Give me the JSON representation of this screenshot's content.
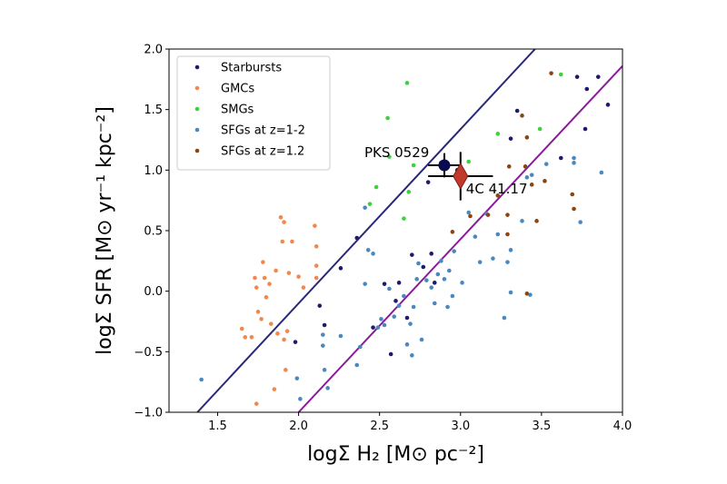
{
  "chart_data": {
    "type": "scatter",
    "xlabel": "logΣ H₂ [M⊙ pc⁻²]",
    "ylabel": "logΣ SFR [M⊙ yr⁻¹ kpc⁻²]",
    "xlim": [
      1.2,
      4.0
    ],
    "ylim": [
      -1.0,
      2.0
    ],
    "xticks": [
      1.5,
      2.0,
      2.5,
      3.0,
      3.5,
      4.0
    ],
    "xtick_labels": [
      "1.5",
      "2.0",
      "2.5",
      "3.0",
      "3.5",
      "4.0"
    ],
    "yticks": [
      -1.0,
      -0.5,
      0.0,
      0.5,
      1.0,
      1.5,
      2.0
    ],
    "ytick_labels": [
      "−1.0",
      "−0.5",
      "0.0",
      "0.5",
      "1.0",
      "1.5",
      "2.0"
    ],
    "grid": false,
    "legend_position": "top-left",
    "series": [
      {
        "name": "Starbursts",
        "color": "#1f1a6b",
        "points": [
          [
            1.98,
            -0.42
          ],
          [
            2.13,
            -0.12
          ],
          [
            2.16,
            -0.28
          ],
          [
            2.26,
            0.19
          ],
          [
            2.36,
            0.44
          ],
          [
            2.46,
            -0.3
          ],
          [
            2.53,
            0.06
          ],
          [
            2.57,
            -0.52
          ],
          [
            2.6,
            -0.08
          ],
          [
            2.62,
            0.07
          ],
          [
            2.67,
            -0.22
          ],
          [
            2.7,
            0.3
          ],
          [
            2.77,
            0.2
          ],
          [
            2.8,
            0.9
          ],
          [
            2.82,
            0.31
          ],
          [
            2.84,
            0.07
          ],
          [
            2.88,
            1.06
          ],
          [
            2.98,
            1.0
          ],
          [
            3.31,
            1.26
          ],
          [
            3.35,
            1.49
          ],
          [
            3.62,
            1.1
          ],
          [
            3.72,
            1.77
          ],
          [
            3.78,
            1.67
          ],
          [
            3.85,
            1.77
          ],
          [
            3.91,
            1.54
          ],
          [
            3.77,
            1.34
          ]
        ]
      },
      {
        "name": "GMCs",
        "color": "#f4874b",
        "points": [
          [
            1.65,
            -0.31
          ],
          [
            1.67,
            -0.38
          ],
          [
            1.71,
            -0.38
          ],
          [
            1.73,
            0.11
          ],
          [
            1.74,
            0.03
          ],
          [
            1.75,
            -0.17
          ],
          [
            1.77,
            -0.23
          ],
          [
            1.78,
            0.24
          ],
          [
            1.79,
            0.11
          ],
          [
            1.8,
            -0.05
          ],
          [
            1.82,
            0.06
          ],
          [
            1.83,
            -0.27
          ],
          [
            1.86,
            0.17
          ],
          [
            1.87,
            -0.35
          ],
          [
            1.89,
            0.61
          ],
          [
            1.9,
            0.41
          ],
          [
            1.91,
            0.57
          ],
          [
            1.92,
            -0.65
          ],
          [
            1.93,
            -0.33
          ],
          [
            1.94,
            0.15
          ],
          [
            1.96,
            0.41
          ],
          [
            2.0,
            0.12
          ],
          [
            2.03,
            0.03
          ],
          [
            2.1,
            0.54
          ],
          [
            2.11,
            0.37
          ],
          [
            2.11,
            0.21
          ],
          [
            2.11,
            0.11
          ],
          [
            1.74,
            -0.93
          ],
          [
            1.85,
            -0.81
          ],
          [
            1.91,
            -0.4
          ]
        ]
      },
      {
        "name": "SMGs",
        "color": "#3dd13d",
        "points": [
          [
            2.44,
            0.72
          ],
          [
            2.48,
            0.86
          ],
          [
            2.55,
            1.43
          ],
          [
            2.56,
            1.11
          ],
          [
            2.65,
            0.6
          ],
          [
            2.67,
            1.72
          ],
          [
            2.68,
            0.82
          ],
          [
            2.71,
            1.04
          ],
          [
            3.05,
            1.07
          ],
          [
            3.23,
            1.3
          ],
          [
            3.49,
            1.34
          ],
          [
            3.62,
            1.79
          ]
        ]
      },
      {
        "name": "SFGs at z=1-2",
        "color": "#4a88c0",
        "points": [
          [
            1.4,
            -0.73
          ],
          [
            1.99,
            -0.72
          ],
          [
            2.01,
            -0.89
          ],
          [
            2.15,
            -0.45
          ],
          [
            2.15,
            -0.36
          ],
          [
            2.16,
            -0.65
          ],
          [
            2.18,
            -0.8
          ],
          [
            2.26,
            -0.37
          ],
          [
            2.36,
            -0.61
          ],
          [
            2.38,
            -0.46
          ],
          [
            2.41,
            0.06
          ],
          [
            2.43,
            0.34
          ],
          [
            2.46,
            0.31
          ],
          [
            2.49,
            -0.3
          ],
          [
            2.51,
            -0.23
          ],
          [
            2.53,
            -0.28
          ],
          [
            2.56,
            0.02
          ],
          [
            2.59,
            -0.21
          ],
          [
            2.62,
            -0.12
          ],
          [
            2.65,
            -0.04
          ],
          [
            2.67,
            -0.44
          ],
          [
            2.69,
            -0.27
          ],
          [
            2.7,
            -0.53
          ],
          [
            2.71,
            -0.13
          ],
          [
            2.73,
            0.1
          ],
          [
            2.74,
            0.23
          ],
          [
            2.76,
            -0.4
          ],
          [
            2.79,
            0.09
          ],
          [
            2.82,
            0.03
          ],
          [
            2.84,
            -0.1
          ],
          [
            2.86,
            0.14
          ],
          [
            2.88,
            0.25
          ],
          [
            2.9,
            0.1
          ],
          [
            2.92,
            -0.13
          ],
          [
            2.93,
            0.17
          ],
          [
            2.95,
            -0.04
          ],
          [
            2.96,
            0.33
          ],
          [
            3.01,
            0.07
          ],
          [
            3.05,
            0.65
          ],
          [
            3.09,
            0.45
          ],
          [
            3.12,
            0.24
          ],
          [
            3.16,
            0.64
          ],
          [
            3.2,
            0.27
          ],
          [
            3.23,
            0.47
          ],
          [
            3.27,
            -0.22
          ],
          [
            3.29,
            0.24
          ],
          [
            3.31,
            0.34
          ],
          [
            3.31,
            -0.01
          ],
          [
            3.38,
            0.58
          ],
          [
            3.41,
            0.94
          ],
          [
            3.44,
            0.96
          ],
          [
            3.53,
            1.05
          ],
          [
            3.7,
            1.06
          ],
          [
            3.74,
            0.57
          ],
          [
            3.87,
            0.98
          ],
          [
            3.7,
            1.1
          ],
          [
            3.43,
            -0.03
          ],
          [
            2.41,
            0.69
          ]
        ]
      },
      {
        "name": "SFGs at z=1.2",
        "color": "#8b4513",
        "points": [
          [
            2.95,
            0.49
          ],
          [
            3.06,
            0.62
          ],
          [
            3.17,
            0.63
          ],
          [
            3.23,
            0.79
          ],
          [
            3.29,
            0.63
          ],
          [
            3.29,
            0.47
          ],
          [
            3.3,
            1.03
          ],
          [
            3.38,
            1.45
          ],
          [
            3.4,
            1.03
          ],
          [
            3.44,
            0.88
          ],
          [
            3.52,
            0.91
          ],
          [
            3.47,
            0.58
          ],
          [
            3.56,
            1.8
          ],
          [
            3.69,
            0.8
          ],
          [
            3.7,
            0.68
          ],
          [
            3.41,
            -0.02
          ],
          [
            3.41,
            1.27
          ]
        ]
      }
    ],
    "lines": [
      {
        "color": "#28287a",
        "x": [
          1.375,
          3.46
        ],
        "y": [
          -1.0,
          2.0
        ]
      },
      {
        "color": "#8b1a9b",
        "x": [
          2.0,
          4.0
        ],
        "y": [
          -1.0,
          1.86
        ]
      }
    ],
    "special_points": [
      {
        "label": "PKS 0529",
        "x": 2.9,
        "y": 1.04,
        "xerr": 0.1,
        "yerr": 0.1,
        "marker": "circle",
        "color": "#0a0a4e"
      },
      {
        "label": "4C 41.17",
        "x": 3.0,
        "y": 0.95,
        "xerr": 0.2,
        "yerr": 0.2,
        "marker": "diamond",
        "color": "#c0392b"
      }
    ]
  }
}
